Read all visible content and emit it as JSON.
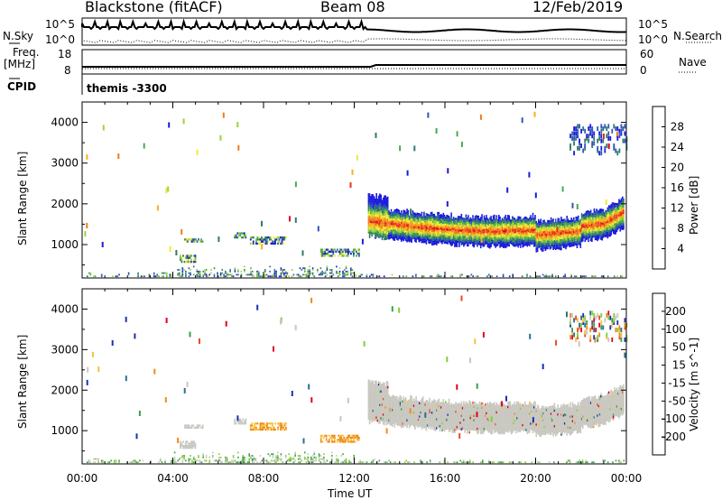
{
  "header": {
    "station": "Blackstone (fitACF)",
    "beam": "Beam 08",
    "date": "12/Feb/2019"
  },
  "strip_labels": {
    "nsky": "N.Sky",
    "nsearch": "N.Search",
    "freq_top": "Freq.",
    "freq_unit": "[MHz]",
    "cpid": "CPID",
    "nave": "Nave",
    "noise_hi_left": "10^5",
    "noise_lo_left": "10^0",
    "noise_hi_right": "10^5",
    "noise_lo_right": "10^0",
    "freq_hi": "18",
    "freq_lo": "8",
    "nave_hi": "60",
    "nave_lo": "0",
    "cpid_value": "themis -3300"
  },
  "chart_data": [
    {
      "type": "heatmap",
      "panel": "power",
      "ylabel": "Slant Range [km]",
      "y_ticks": [
        "1000",
        "2000",
        "3000",
        "4000"
      ],
      "ylim": [
        180,
        4500
      ],
      "colorbar_label": "Power [dB]",
      "colorbar_ticks": [
        "4",
        "8",
        "12",
        "16",
        "20",
        "24",
        "28"
      ],
      "colorbar_colors": [
        "#1a1adc",
        "#2e56b4",
        "#2f7a6a",
        "#4aa852",
        "#9fd23a",
        "#f1e836",
        "#f5b21e",
        "#f07a1e",
        "#e8321e",
        "#e0001e"
      ]
    },
    {
      "type": "heatmap",
      "panel": "velocity",
      "ylabel": "Slant Range [km]",
      "y_ticks": [
        "1000",
        "2000",
        "3000",
        "4000"
      ],
      "ylim": [
        180,
        4500
      ],
      "colorbar_label": "Velocity [m s^-1]",
      "colorbar_ticks": [
        "200",
        "100",
        "50",
        "15",
        "-15",
        "-50",
        "-100",
        "-200"
      ],
      "colorbar_colors": [
        "#1a2fb4",
        "#2b6e8c",
        "#3a9e4a",
        "#7fcf3a",
        "#c8c8c0",
        "#f5c13a",
        "#f08a1e",
        "#ec4a1e",
        "#e0001e"
      ]
    }
  ],
  "time_axis": {
    "xlabel": "Time UT",
    "ticks": [
      "00:00",
      "04:00",
      "08:00",
      "12:00",
      "16:00",
      "20:00",
      "00:00"
    ]
  },
  "colors": {
    "ground_scatter": "#c8c8c0",
    "power_core": "#e8321e"
  }
}
